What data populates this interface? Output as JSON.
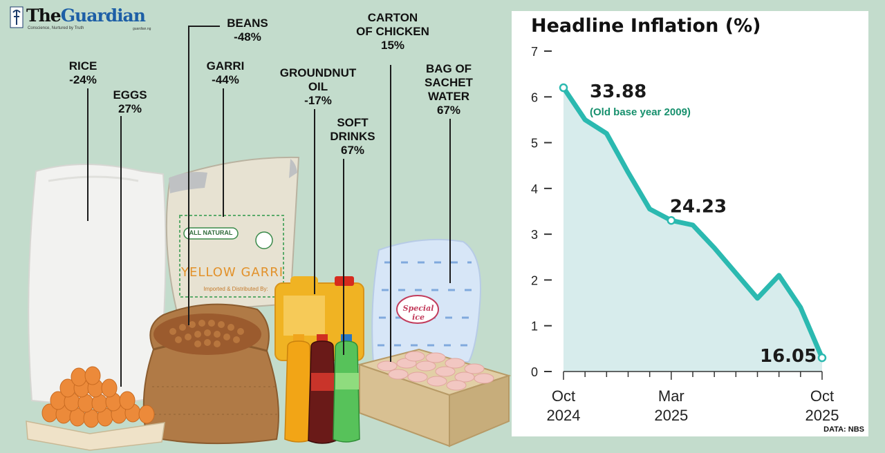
{
  "header": {
    "brand_the": "The",
    "brand_guardian": "Guardian",
    "tagline": "Conscience, Nurtured by Truth",
    "url": "guardian.ng"
  },
  "colors": {
    "background": "#c3dccc",
    "line": "#2bb9b0",
    "fill": "#d7ecec",
    "accent_green": "#17906d",
    "brand_blue": "#1d5fa6"
  },
  "commodities": [
    {
      "name": [
        "RICE"
      ],
      "change": "-24%"
    },
    {
      "name": [
        "EGGS"
      ],
      "change": "27%"
    },
    {
      "name": [
        "BEANS"
      ],
      "change": "-48%"
    },
    {
      "name": [
        "GARRI"
      ],
      "change": "-44%"
    },
    {
      "name": [
        "GROUNDNUT",
        "OIL"
      ],
      "change": "-17%"
    },
    {
      "name": [
        "SOFT",
        "DRINKS"
      ],
      "change": "67%"
    },
    {
      "name": [
        "CARTON",
        "OF CHICKEN"
      ],
      "change": "15%"
    },
    {
      "name": [
        "BAG OF",
        "SACHET",
        "WATER"
      ],
      "change": "67%"
    }
  ],
  "images": {
    "garri_bag_top": "ALL NATURAL",
    "garri_bag_title": "YELLOW GARRI",
    "garri_bag_sub": "Imported & Distributed By:",
    "water_brand": "Special ice"
  },
  "chart_data": {
    "type": "line",
    "title": "Headline Inflation (%)",
    "x": [
      "Oct 2024",
      "Nov 2024",
      "Dec 2024",
      "Jan 2025",
      "Feb 2025",
      "Mar 2025",
      "Apr 2025",
      "May 2025",
      "Jun 2025",
      "Jul 2025",
      "Aug 2025",
      "Sep 2025",
      "Oct 2025"
    ],
    "y": [
      6.2,
      5.5,
      5.2,
      4.35,
      3.55,
      3.3,
      3.2,
      2.7,
      2.15,
      1.6,
      2.1,
      1.4,
      0.3
    ],
    "ylim": [
      0,
      7
    ],
    "yticks": [
      "0",
      "1",
      "2",
      "3",
      "4",
      "5",
      "6",
      "7"
    ],
    "xticks": [
      {
        "line1": "Oct",
        "line2": "2024",
        "index": 0
      },
      {
        "line1": "Mar",
        "line2": "2025",
        "index": 5
      },
      {
        "line1": "Oct",
        "line2": "2025",
        "index": 12
      }
    ],
    "annotations": [
      {
        "index": 0,
        "text": "33.88",
        "note": "(Old base year 2009)"
      },
      {
        "index": 5,
        "text": "24.23",
        "note": ""
      },
      {
        "index": 12,
        "text": "16.05",
        "note": ""
      }
    ],
    "source": "DATA: NBS"
  }
}
